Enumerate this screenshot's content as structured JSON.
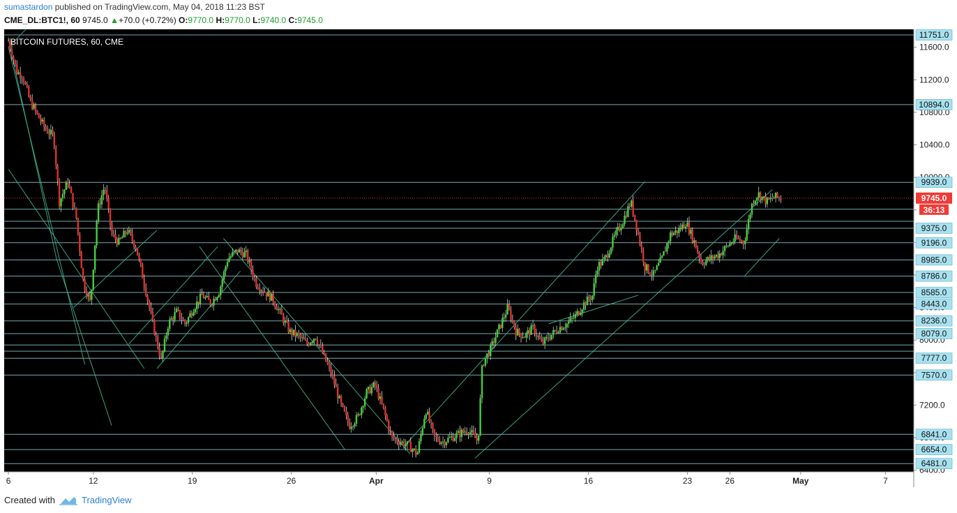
{
  "header": {
    "author": "sumastardon",
    "published_text": "published on TradingView.com, May 04, 2018 11:23 BST",
    "symbol": "CME_DL:BTC1!, 60",
    "price": "9745.0",
    "change": "+70.0 (+0.72%)",
    "o_label": "O:",
    "o_value": "9770.0",
    "h_label": "H:",
    "h_value": "9770.0",
    "l_label": "L:",
    "l_value": "9740.0",
    "c_label": "C:",
    "c_value": "9745.0"
  },
  "chart_data": {
    "type": "candlestick",
    "title": "BITCOIN FUTURES, 60, CME",
    "ylim": [
      6380,
      11820
    ],
    "y_ticks": [
      6400,
      6800,
      7200,
      7600,
      8000,
      8400,
      8800,
      9200,
      9600,
      10000,
      10400,
      10800,
      11200,
      11600
    ],
    "y_tick_labels": [
      "6400.0",
      "6800.0",
      "7200.0",
      "7600.0",
      "8000.0",
      "8400.0",
      "8800.0",
      "9200.0",
      "9600.0",
      "10000.0",
      "10400.0",
      "10800.0",
      "11200.0",
      "11600.0"
    ],
    "x_ticks": [
      {
        "label": "6",
        "x": 0
      },
      {
        "label": "12",
        "x": 6
      },
      {
        "label": "19",
        "x": 13
      },
      {
        "label": "26",
        "x": 20
      },
      {
        "label": "Apr",
        "x": 26
      },
      {
        "label": "9",
        "x": 34
      },
      {
        "label": "16",
        "x": 41
      },
      {
        "label": "23",
        "x": 48
      },
      {
        "label": "26",
        "x": 51
      },
      {
        "label": "May",
        "x": 56
      },
      {
        "label": "7",
        "x": 62
      }
    ],
    "xlim": [
      -0.3,
      64
    ],
    "horizontal_levels": [
      "11751.0",
      "10894.0",
      "9939.0",
      "9745.0",
      "9375.0",
      "9196.0",
      "8985.0",
      "8786.0",
      "8585.0",
      "8443.0",
      "8236.0",
      "8079.0",
      "7777.0",
      "7570.0",
      "6841.0",
      "6654.0",
      "6481.0"
    ],
    "level_values": [
      11751,
      10894,
      9939,
      9608,
      9460,
      9375,
      9196,
      8985,
      8786,
      8585,
      8443,
      8236,
      8079,
      7940,
      7863,
      7777,
      7570,
      6841,
      6654,
      6481
    ],
    "current_price": 9745.0,
    "current_price_label": "9745.0",
    "countdown_label": "36:13",
    "price_path": [
      [
        0,
        11680
      ],
      [
        0.6,
        11300
      ],
      [
        1,
        11250
      ],
      [
        1.5,
        10950
      ],
      [
        2,
        10780
      ],
      [
        2.6,
        10600
      ],
      [
        3.2,
        10500
      ],
      [
        3.6,
        9700
      ],
      [
        4.2,
        9950
      ],
      [
        4.8,
        9500
      ],
      [
        5.3,
        8700
      ],
      [
        5.8,
        8450
      ],
      [
        6.3,
        9600
      ],
      [
        6.8,
        9900
      ],
      [
        7.3,
        9300
      ],
      [
        7.8,
        9200
      ],
      [
        8.4,
        9350
      ],
      [
        9.0,
        9150
      ],
      [
        9.6,
        8700
      ],
      [
        10.2,
        8200
      ],
      [
        10.8,
        7750
      ],
      [
        11.3,
        8200
      ],
      [
        11.9,
        8350
      ],
      [
        12.5,
        8200
      ],
      [
        13.1,
        8400
      ],
      [
        13.7,
        8550
      ],
      [
        14.3,
        8450
      ],
      [
        14.9,
        8600
      ],
      [
        15.5,
        9000
      ],
      [
        16.2,
        9100
      ],
      [
        16.8,
        9050
      ],
      [
        17.5,
        8700
      ],
      [
        18.1,
        8600
      ],
      [
        18.7,
        8500
      ],
      [
        19.3,
        8300
      ],
      [
        19.9,
        8100
      ],
      [
        20.5,
        8050
      ],
      [
        21.1,
        7950
      ],
      [
        21.7,
        8050
      ],
      [
        22.3,
        7800
      ],
      [
        22.9,
        7550
      ],
      [
        23.5,
        7200
      ],
      [
        24.1,
        6950
      ],
      [
        24.7,
        7050
      ],
      [
        25.3,
        7350
      ],
      [
        25.9,
        7450
      ],
      [
        26.5,
        7150
      ],
      [
        27.1,
        6800
      ],
      [
        27.7,
        6750
      ],
      [
        28.3,
        6700
      ],
      [
        28.9,
        6600
      ],
      [
        29.5,
        7150
      ],
      [
        30.1,
        6800
      ],
      [
        30.7,
        6750
      ],
      [
        31.3,
        6800
      ],
      [
        31.9,
        6850
      ],
      [
        32.5,
        6900
      ],
      [
        33.2,
        6750
      ],
      [
        33.5,
        7700
      ],
      [
        34.1,
        7900
      ],
      [
        34.7,
        8150
      ],
      [
        35.3,
        8400
      ],
      [
        35.9,
        8100
      ],
      [
        36.5,
        8050
      ],
      [
        37.1,
        8150
      ],
      [
        37.7,
        7950
      ],
      [
        38.3,
        8050
      ],
      [
        38.9,
        8150
      ],
      [
        39.5,
        8200
      ],
      [
        40.1,
        8300
      ],
      [
        40.7,
        8450
      ],
      [
        41.3,
        8550
      ],
      [
        41.6,
        8900
      ],
      [
        42.2,
        9000
      ],
      [
        42.8,
        9250
      ],
      [
        43.4,
        9450
      ],
      [
        44.0,
        9700
      ],
      [
        44.4,
        9400
      ],
      [
        45.0,
        8900
      ],
      [
        45.6,
        8800
      ],
      [
        46.2,
        9000
      ],
      [
        46.8,
        9300
      ],
      [
        47.4,
        9350
      ],
      [
        47.9,
        9450
      ],
      [
        48.5,
        9200
      ],
      [
        49.0,
        8950
      ],
      [
        49.6,
        9000
      ],
      [
        50.2,
        9050
      ],
      [
        50.8,
        9150
      ],
      [
        51.4,
        9250
      ],
      [
        52.0,
        9200
      ],
      [
        52.6,
        9700
      ],
      [
        53.0,
        9800
      ],
      [
        53.6,
        9700
      ],
      [
        54.2,
        9760
      ],
      [
        54.6,
        9745
      ]
    ],
    "channel_lines": [
      [
        [
          0,
          11700
        ],
        [
          3.4,
          9000
        ],
        [
          7.3,
          6950
        ]
      ],
      [
        [
          0,
          11600
        ],
        [
          5.4,
          7700
        ]
      ],
      [
        [
          0,
          10100
        ],
        [
          9.6,
          7650
        ]
      ],
      [
        [
          4.6,
          8400
        ],
        [
          10.5,
          9350
        ]
      ],
      [
        [
          8.5,
          7950
        ],
        [
          14.8,
          9150
        ]
      ],
      [
        [
          10.5,
          7650
        ],
        [
          16.4,
          8850
        ]
      ],
      [
        [
          1.4,
          11850
        ],
        [
          0,
          11600
        ]
      ],
      [
        [
          15.2,
          9250
        ],
        [
          28.4,
          6600
        ]
      ],
      [
        [
          13.5,
          9150
        ],
        [
          23.8,
          6650
        ]
      ],
      [
        [
          28.0,
          6700
        ],
        [
          45.0,
          9950
        ]
      ],
      [
        [
          33.0,
          6550
        ],
        [
          54.0,
          9850
        ]
      ],
      [
        [
          38.2,
          8200
        ],
        [
          44.5,
          8550
        ]
      ],
      [
        [
          52.0,
          8780
        ],
        [
          54.5,
          9250
        ]
      ]
    ]
  },
  "footer": {
    "created_with": "Created with",
    "brand": "TradingView"
  }
}
